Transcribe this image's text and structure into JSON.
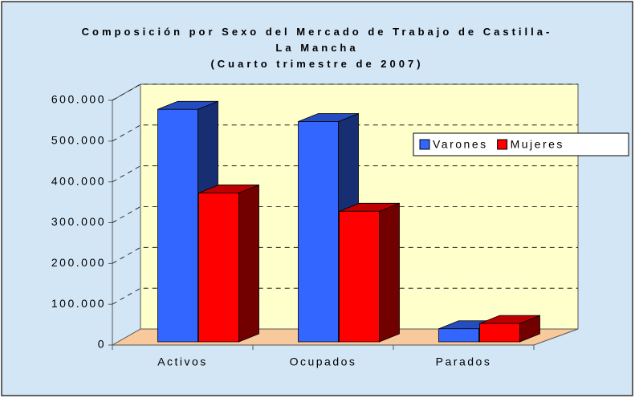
{
  "chart_data": {
    "type": "bar3d",
    "title": "Composición por Sexo del Mercado de Trabajo de Castilla-La Mancha",
    "subtitle": "(Cuarto trimestre de 2007)",
    "categories": [
      "Activos",
      "Ocupados",
      "Parados"
    ],
    "series": [
      {
        "name": "Varones",
        "color": "#3366ff",
        "values": [
          570000,
          540000,
          32000
        ]
      },
      {
        "name": "Mujeres",
        "color": "#ff0000",
        "values": [
          365000,
          320000,
          45000
        ]
      }
    ],
    "ylim": [
      0,
      600000
    ],
    "yticks": [
      0,
      {
        "value": 100000,
        "label": "100.000"
      },
      {
        "value": 200000,
        "label": "200.000"
      },
      {
        "value": 300000,
        "label": "300.000"
      },
      {
        "value": 400000,
        "label": "400.000"
      },
      {
        "value": 500000,
        "label": "500.000"
      },
      {
        "value": 600000,
        "label": "600.000"
      }
    ],
    "grid": true,
    "legend": "right"
  }
}
